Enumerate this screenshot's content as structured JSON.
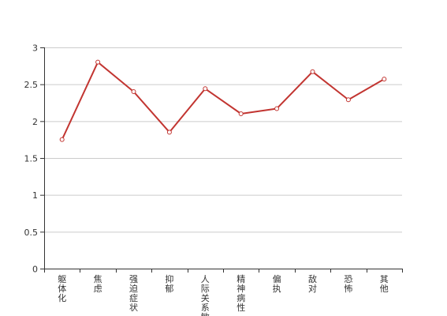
{
  "chart_data": {
    "type": "line",
    "categories": [
      "躯体化",
      "焦虑",
      "强迫症状",
      "抑郁",
      "人际关系敏感",
      "精神病性",
      "偏执",
      "敌对",
      "恐怖",
      "其他"
    ],
    "series": [
      {
        "values": [
          1.75,
          2.8,
          2.4,
          1.85,
          2.44,
          2.1,
          2.17,
          2.67,
          2.29,
          2.57
        ]
      }
    ],
    "yticks": [
      0,
      0.5,
      1,
      1.5,
      2,
      2.5,
      3
    ],
    "ylim": [
      0,
      3
    ],
    "grid": true,
    "colors": {
      "line": "#c23531",
      "grid": "#cccccc",
      "axis": "#333333"
    }
  }
}
